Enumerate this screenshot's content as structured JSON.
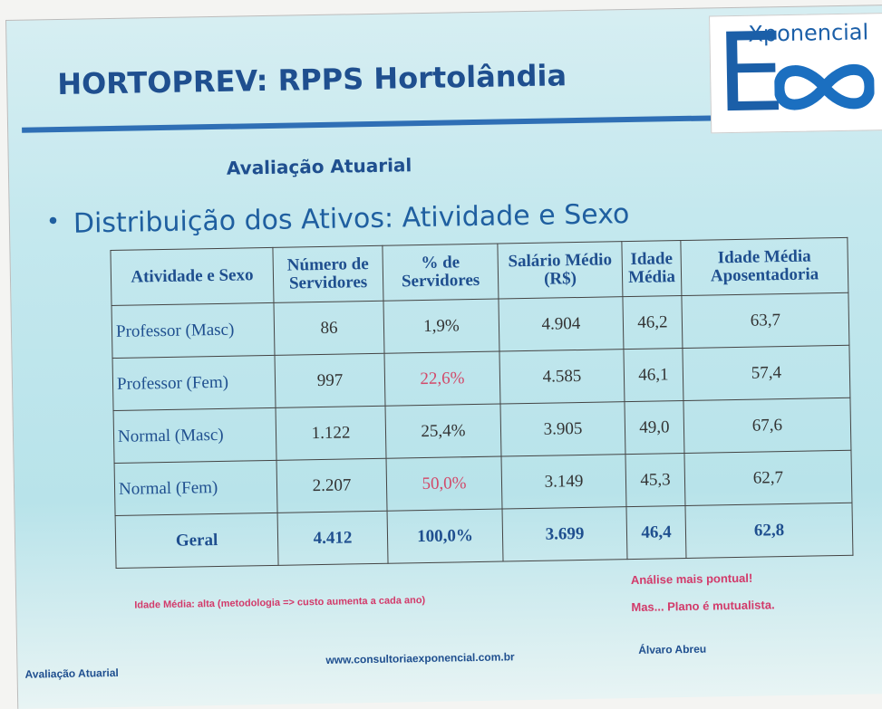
{
  "header": {
    "title": "HORTOPREV: RPPS Hortolândia",
    "logo_letter": "E",
    "logo_text": "Xponencial"
  },
  "subtitle": "Avaliação Atuarial",
  "bullet": "Distribuição dos Ativos: Atividade e Sexo",
  "table": {
    "columns": [
      "Atividade e Sexo",
      "Número de Servidores",
      "% de Servidores",
      "Salário Médio (R$)",
      "Idade Média",
      "Idade Média Aposentadoria"
    ],
    "rows": [
      [
        "Professor (Masc)",
        "86",
        "1,9%",
        "4.904",
        "46,2",
        "63,7"
      ],
      [
        "Professor (Fem)",
        "997",
        "22,6%",
        "4.585",
        "46,1",
        "57,4"
      ],
      [
        "Normal (Masc)",
        "1.122",
        "25,4%",
        "3.905",
        "49,0",
        "67,6"
      ],
      [
        "Normal (Fem)",
        "2.207",
        "50,0%",
        "3.149",
        "45,3",
        "62,7"
      ],
      [
        "Geral",
        "4.412",
        "100,0%",
        "3.699",
        "46,4",
        "62,8"
      ]
    ]
  },
  "notes": {
    "left": "Idade Média: alta (metodologia => custo aumenta a cada ano)",
    "right": [
      "Análise mais pontual!",
      "Mas... Plano é mutualista."
    ]
  },
  "footer": {
    "left": "Avaliação Atuarial",
    "center": "www.consultoriaexponencial.com.br",
    "right": "Álvaro Abreu"
  }
}
